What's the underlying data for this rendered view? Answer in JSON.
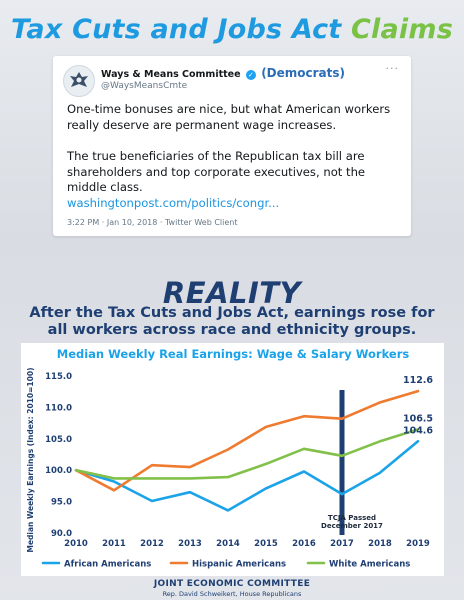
{
  "headline": {
    "part1": "Tax Cuts and Jobs Act",
    "part2": "Claims"
  },
  "tweet": {
    "account_name": "Ways & Means Committee",
    "account_party": "(Democrats)",
    "handle": "@WaysMeansCmte",
    "paragraph1": "One-time bonuses are nice, but what American workers really deserve are permanent wage increases.",
    "paragraph2": "The true beneficiaries of the Republican tax bill are shareholders and top corporate executives, not the middle class.",
    "link": "washingtonpost.com/politics/congr...",
    "meta": "3:22 PM · Jan 10, 2018 · Twitter Web Client",
    "more": "···"
  },
  "reality": {
    "title": "REALITY",
    "line1": "After the Tax Cuts and Jobs Act, earnings rose for",
    "line2": "all workers across race and ethnicity groups."
  },
  "chart_data": {
    "type": "line",
    "title": "Median Weekly Real Earnings: Wage & Salary Workers",
    "ylabel": "Median Weekly Earnings (Index: 2010=100)",
    "xlabel": "",
    "x": [
      2010,
      2011,
      2012,
      2013,
      2014,
      2015,
      2016,
      2017,
      2018,
      2019
    ],
    "ylim": [
      90.0,
      115.0
    ],
    "yticks": [
      "90.0",
      "95.0",
      "100.0",
      "105.0",
      "110.0",
      "115.0"
    ],
    "series": [
      {
        "name": "African Americans",
        "color": "#1aa3e8",
        "values": [
          100.0,
          98.2,
          95.1,
          96.5,
          93.6,
          97.1,
          99.8,
          96.2,
          99.6,
          104.6
        ],
        "end_label": "104.6"
      },
      {
        "name": "Hispanic Americans",
        "color": "#ee7b30",
        "values": [
          100.0,
          96.8,
          100.8,
          100.5,
          103.3,
          106.9,
          108.6,
          108.2,
          110.8,
          112.6
        ],
        "end_label": "112.6"
      },
      {
        "name": "White Americans",
        "color": "#82c04a",
        "values": [
          100.0,
          98.7,
          98.7,
          98.7,
          98.9,
          101.0,
          103.4,
          102.3,
          104.6,
          106.5
        ],
        "end_label": "106.5"
      }
    ],
    "marker": {
      "x": 2017,
      "label_line1": "TCJA Passed",
      "label_line2": "December 2017",
      "color": "#1f3f73"
    },
    "grid": false,
    "legend_position": "bottom"
  },
  "footer": {
    "org": "JOINT ECONOMIC COMMITTEE",
    "sub": "Rep. David Schweikert, House Republicans"
  }
}
